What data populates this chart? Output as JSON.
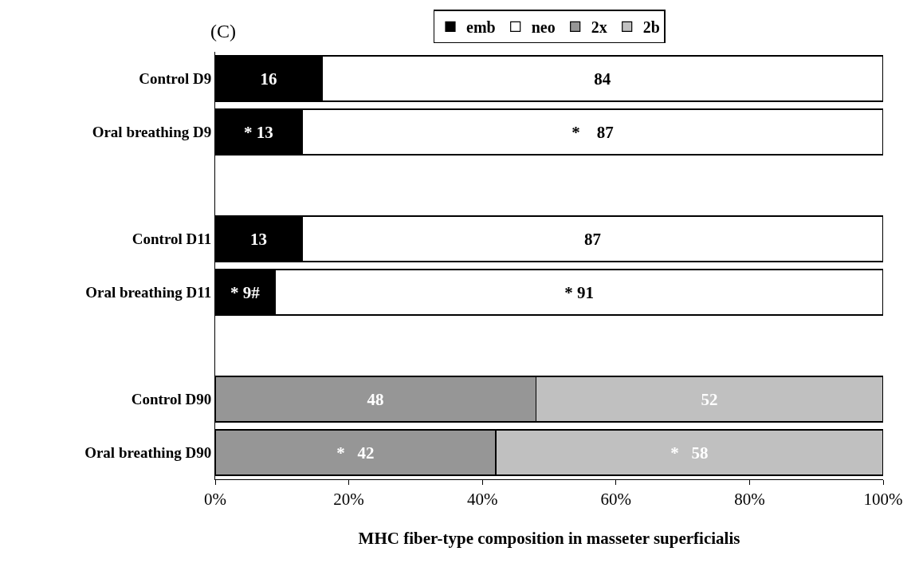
{
  "chart_data": {
    "type": "bar",
    "orientation": "horizontal",
    "stacked": true,
    "title": "(C)",
    "xlabel": "MHC fiber-type composition in masseter superficialis",
    "categories": [
      "Control D9",
      "Oral breathing D9",
      null,
      "Control D11",
      "Oral breathing D11",
      null,
      "Control D90",
      "Oral breathing D90"
    ],
    "series": [
      {
        "name": "emb",
        "color": "#000000",
        "values": [
          16,
          13,
          null,
          13,
          9,
          null,
          null,
          null
        ],
        "value_labels": [
          "16",
          "* 13",
          null,
          "13",
          "* 9#",
          null,
          null,
          null
        ]
      },
      {
        "name": "neo",
        "color": "#ffffff",
        "values": [
          84,
          87,
          null,
          87,
          91,
          null,
          null,
          null
        ],
        "value_labels": [
          "84",
          "*    87",
          null,
          "87",
          "* 91",
          null,
          null,
          null
        ]
      },
      {
        "name": "2x",
        "color": "#969696",
        "values": [
          null,
          null,
          null,
          null,
          null,
          null,
          48,
          42
        ],
        "value_labels": [
          null,
          null,
          null,
          null,
          null,
          null,
          "48",
          "*   42"
        ]
      },
      {
        "name": "2b",
        "color": "#c0c0c0",
        "values": [
          null,
          null,
          null,
          null,
          null,
          null,
          52,
          58
        ],
        "value_labels": [
          null,
          null,
          null,
          null,
          null,
          null,
          "52",
          "*   58"
        ]
      }
    ],
    "xlim": [
      0,
      100
    ],
    "xticks": [
      {
        "value": 0,
        "label": "0%"
      },
      {
        "value": 20,
        "label": "20%"
      },
      {
        "value": 40,
        "label": "40%"
      },
      {
        "value": 60,
        "label": "60%"
      },
      {
        "value": 80,
        "label": "80%"
      },
      {
        "value": 100,
        "label": "100%"
      }
    ],
    "grid": false,
    "legend": "top"
  }
}
